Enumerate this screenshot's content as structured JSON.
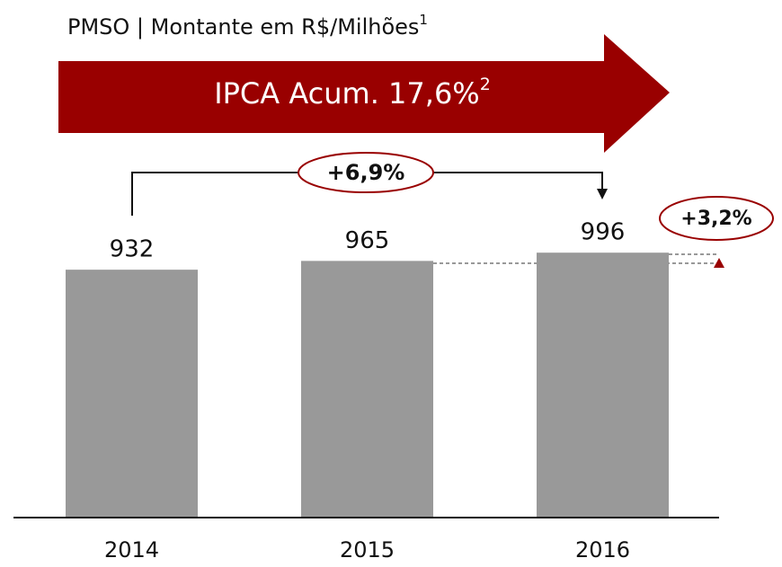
{
  "chart_data": {
    "type": "bar",
    "title": "PMSO | Montante em R$/Milhões",
    "title_note": "1",
    "banner": "IPCA Acum. 17,6%",
    "banner_note": "2",
    "categories": [
      "2014",
      "2015",
      "2016"
    ],
    "values": [
      932,
      965,
      996
    ],
    "color": "#999999",
    "annotations": [
      "+6,9%",
      "+3,2%"
    ]
  }
}
